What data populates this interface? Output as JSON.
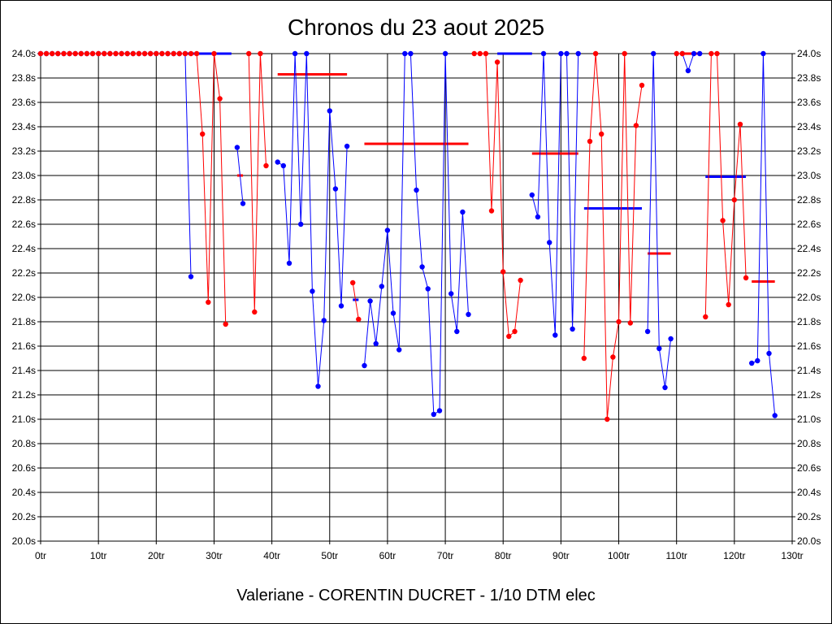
{
  "chart_data": {
    "type": "line",
    "title": "Chronos du 23 aout 2025",
    "subtitle": "Valeriane - CORENTIN DUCRET - 1/10 DTM elec",
    "xlabel": "",
    "ylabel": "",
    "xlim": [
      0,
      130
    ],
    "ylim": [
      20.0,
      24.0
    ],
    "grid": true,
    "legend": "none",
    "x_ticks": [
      0,
      10,
      20,
      30,
      40,
      50,
      60,
      70,
      80,
      90,
      100,
      110,
      120,
      130
    ],
    "x_tick_labels": [
      "0tr",
      "10tr",
      "20tr",
      "30tr",
      "40tr",
      "50tr",
      "60tr",
      "70tr",
      "80tr",
      "90tr",
      "100tr",
      "110tr",
      "120tr",
      "130tr"
    ],
    "y_ticks": [
      20.0,
      20.2,
      20.4,
      20.6,
      20.8,
      21.0,
      21.2,
      21.4,
      21.6,
      21.8,
      22.0,
      22.2,
      22.4,
      22.6,
      22.8,
      23.0,
      23.2,
      23.4,
      23.6,
      23.8,
      24.0
    ],
    "y_tick_labels": [
      "20.0s",
      "20.2s",
      "20.4s",
      "20.6s",
      "20.8s",
      "21.0s",
      "21.2s",
      "21.4s",
      "21.6s",
      "21.8s",
      "22.0s",
      "22.2s",
      "22.4s",
      "22.6s",
      "22.8s",
      "23.0s",
      "23.2s",
      "23.4s",
      "23.6s",
      "23.8s",
      "24.0s"
    ],
    "series": [
      {
        "color": "#0000ff",
        "segments": [
          [
            [
              0,
              24.0
            ],
            [
              1,
              24.0
            ],
            [
              2,
              24.0
            ],
            [
              3,
              24.0
            ],
            [
              4,
              24.0
            ],
            [
              5,
              24.0
            ],
            [
              6,
              24.0
            ],
            [
              7,
              24.0
            ],
            [
              8,
              24.0
            ],
            [
              9,
              24.0
            ],
            [
              10,
              24.0
            ],
            [
              11,
              24.0
            ],
            [
              12,
              24.0
            ],
            [
              13,
              24.0
            ],
            [
              14,
              24.0
            ],
            [
              15,
              24.0
            ],
            [
              16,
              24.0
            ],
            [
              17,
              24.0
            ],
            [
              18,
              24.0
            ],
            [
              19,
              24.0
            ],
            [
              20,
              24.0
            ],
            [
              21,
              24.0
            ],
            [
              22,
              24.0
            ],
            [
              23,
              24.0
            ],
            [
              24,
              24.0
            ],
            [
              25,
              24.0
            ],
            [
              26,
              22.17
            ]
          ],
          [
            [
              34,
              23.23
            ],
            [
              35,
              22.77
            ]
          ],
          [
            [
              41,
              23.11
            ],
            [
              42,
              23.08
            ],
            [
              43,
              22.28
            ],
            [
              44,
              24.0
            ],
            [
              45,
              22.6
            ],
            [
              46,
              24.0
            ],
            [
              47,
              22.05
            ],
            [
              48,
              21.27
            ],
            [
              49,
              21.81
            ],
            [
              50,
              23.53
            ],
            [
              51,
              22.89
            ],
            [
              52,
              21.93
            ],
            [
              53,
              23.24
            ]
          ],
          [
            [
              56,
              21.44
            ],
            [
              57,
              21.97
            ],
            [
              58,
              21.62
            ],
            [
              59,
              22.09
            ],
            [
              60,
              22.55
            ],
            [
              61,
              21.87
            ],
            [
              62,
              21.57
            ],
            [
              63,
              24.0
            ],
            [
              64,
              24.0
            ],
            [
              65,
              22.88
            ],
            [
              66,
              22.25
            ],
            [
              67,
              22.07
            ],
            [
              68,
              21.04
            ],
            [
              69,
              21.07
            ],
            [
              70,
              24.0
            ],
            [
              71,
              22.03
            ],
            [
              72,
              21.72
            ],
            [
              73,
              22.7
            ],
            [
              74,
              21.86
            ]
          ],
          [
            [
              85,
              22.84
            ],
            [
              86,
              22.66
            ],
            [
              87,
              24.0
            ],
            [
              88,
              22.45
            ],
            [
              89,
              21.69
            ],
            [
              90,
              24.0
            ],
            [
              91,
              24.0
            ],
            [
              92,
              21.74
            ],
            [
              93,
              24.0
            ]
          ],
          [
            [
              105,
              21.72
            ],
            [
              106,
              24.0
            ],
            [
              107,
              21.58
            ],
            [
              108,
              21.26
            ],
            [
              109,
              21.66
            ]
          ],
          [
            [
              111,
              24.0
            ],
            [
              112,
              23.86
            ],
            [
              113,
              24.0
            ],
            [
              114,
              24.0
            ]
          ],
          [
            [
              123,
              21.46
            ],
            [
              124,
              21.48
            ],
            [
              125,
              24.0
            ],
            [
              126,
              21.54
            ],
            [
              127,
              21.03
            ]
          ]
        ],
        "averages": [
          {
            "from": 25,
            "to": 33,
            "y": 24.0
          },
          {
            "from": 54,
            "to": 55,
            "y": 21.98
          },
          {
            "from": 79,
            "to": 85,
            "y": 24.0
          },
          {
            "from": 94,
            "to": 104,
            "y": 22.73
          },
          {
            "from": 115,
            "to": 122,
            "y": 22.99
          }
        ]
      },
      {
        "color": "#ff0000",
        "segments": [
          [
            [
              0,
              24.0
            ],
            [
              1,
              24.0
            ],
            [
              2,
              24.0
            ],
            [
              3,
              24.0
            ],
            [
              4,
              24.0
            ],
            [
              5,
              24.0
            ],
            [
              6,
              24.0
            ],
            [
              7,
              24.0
            ],
            [
              8,
              24.0
            ],
            [
              9,
              24.0
            ],
            [
              10,
              24.0
            ],
            [
              11,
              24.0
            ],
            [
              12,
              24.0
            ],
            [
              13,
              24.0
            ],
            [
              14,
              24.0
            ],
            [
              15,
              24.0
            ],
            [
              16,
              24.0
            ],
            [
              17,
              24.0
            ],
            [
              18,
              24.0
            ],
            [
              19,
              24.0
            ],
            [
              20,
              24.0
            ],
            [
              21,
              24.0
            ],
            [
              22,
              24.0
            ],
            [
              23,
              24.0
            ],
            [
              24,
              24.0
            ],
            [
              25,
              24.0
            ],
            [
              26,
              24.0
            ],
            [
              27,
              24.0
            ],
            [
              28,
              23.34
            ],
            [
              29,
              21.96
            ],
            [
              30,
              24.0
            ],
            [
              31,
              23.63
            ],
            [
              32,
              21.78
            ]
          ],
          [
            [
              36,
              24.0
            ],
            [
              37,
              21.88
            ],
            [
              38,
              24.0
            ],
            [
              39,
              23.08
            ]
          ],
          [
            [
              54,
              22.12
            ],
            [
              55,
              21.82
            ]
          ],
          [
            [
              75,
              24.0
            ],
            [
              76,
              24.0
            ],
            [
              77,
              24.0
            ],
            [
              78,
              22.71
            ],
            [
              79,
              23.93
            ],
            [
              80,
              22.21
            ],
            [
              81,
              21.68
            ],
            [
              82,
              21.72
            ],
            [
              83,
              22.14
            ]
          ],
          [
            [
              94,
              21.5
            ],
            [
              95,
              23.28
            ],
            [
              96,
              24.0
            ],
            [
              97,
              23.34
            ],
            [
              98,
              21.0
            ],
            [
              99,
              21.51
            ],
            [
              100,
              21.8
            ],
            [
              101,
              24.0
            ],
            [
              102,
              21.79
            ],
            [
              103,
              23.41
            ],
            [
              104,
              23.74
            ]
          ],
          [
            [
              110,
              24.0
            ],
            [
              111,
              24.0
            ]
          ],
          [
            [
              115,
              21.84
            ],
            [
              116,
              24.0
            ],
            [
              117,
              24.0
            ],
            [
              118,
              22.63
            ],
            [
              119,
              21.94
            ],
            [
              120,
              22.8
            ],
            [
              121,
              23.42
            ],
            [
              122,
              22.16
            ]
          ]
        ],
        "averages": [
          {
            "from": 34,
            "to": 35,
            "y": 23.0
          },
          {
            "from": 41,
            "to": 53,
            "y": 23.83
          },
          {
            "from": 56,
            "to": 74,
            "y": 23.26
          },
          {
            "from": 85,
            "to": 93,
            "y": 23.18
          },
          {
            "from": 105,
            "to": 109,
            "y": 22.36
          },
          {
            "from": 111,
            "to": 114,
            "y": 24.0
          },
          {
            "from": 123,
            "to": 127,
            "y": 22.13
          }
        ]
      }
    ]
  }
}
